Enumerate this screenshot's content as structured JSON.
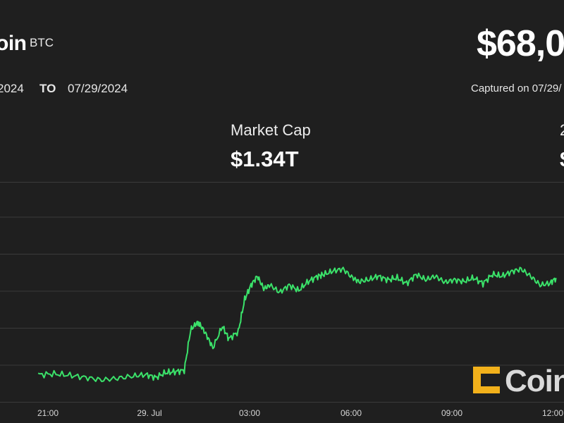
{
  "header": {
    "asset_name": "oin",
    "ticker": "BTC",
    "price": "$68,0"
  },
  "date_range": {
    "from": "2024",
    "to_label": "TO",
    "to": "07/29/2024",
    "captured": "Captured on 07/29/"
  },
  "stats": {
    "market_cap_label": "Market Cap",
    "market_cap_value": "$1.34T",
    "edge_top": "2",
    "edge_bottom": "$"
  },
  "watermark": {
    "text": "Coin"
  },
  "colors": {
    "background": "#1f1f1f",
    "line": "#3be26a",
    "grid": "#3a3a3a",
    "axis_text": "#d6d6d6",
    "logo_accent": "#f2b11b"
  },
  "chart_data": {
    "type": "line",
    "title": "",
    "xlabel": "",
    "ylabel": "",
    "grid": true,
    "x_tick_labels": [
      "21:00",
      "29. Jul",
      "03:00",
      "06:00",
      "09:00",
      "12:00"
    ],
    "x_hours": [
      -4,
      -3.5,
      -3,
      -2.5,
      -2,
      -1.5,
      -1,
      -0.6,
      -0.3,
      0,
      0.3,
      0.6,
      0.8,
      1,
      1.1,
      1.3,
      1.5,
      1.8,
      2,
      2.3,
      2.5,
      2.7,
      2.9,
      3.1,
      3.3,
      3.6,
      3.9,
      4.2,
      4.5,
      4.8,
      5,
      5.3,
      5.6,
      5.9,
      6.1,
      6.4,
      6.7,
      7,
      7.3,
      7.6,
      7.9,
      8.2,
      8.5,
      8.8,
      9.1,
      9.4,
      9.7,
      10,
      10.3,
      10.6,
      10.9,
      11.2,
      11.5,
      11.8,
      12.1,
      12.3
    ],
    "y_values": [
      0.2,
      0.22,
      0.18,
      0.12,
      0.05,
      0.1,
      0.16,
      0.2,
      0.12,
      0.25,
      0.28,
      0.32,
      1.45,
      1.65,
      1.6,
      1.3,
      0.95,
      1.55,
      1.2,
      1.4,
      2.3,
      2.7,
      2.95,
      2.6,
      2.7,
      2.5,
      2.7,
      2.55,
      2.8,
      2.95,
      3.0,
      3.1,
      3.15,
      2.9,
      2.8,
      2.85,
      2.95,
      2.85,
      2.9,
      2.75,
      3.0,
      2.85,
      2.95,
      2.78,
      2.85,
      2.8,
      2.9,
      2.75,
      3.0,
      2.95,
      3.08,
      3.15,
      2.95,
      2.7,
      2.75,
      2.9
    ],
    "ylim": [
      -0.6,
      4.6
    ],
    "xlim": [
      -5.2,
      12.55
    ]
  }
}
